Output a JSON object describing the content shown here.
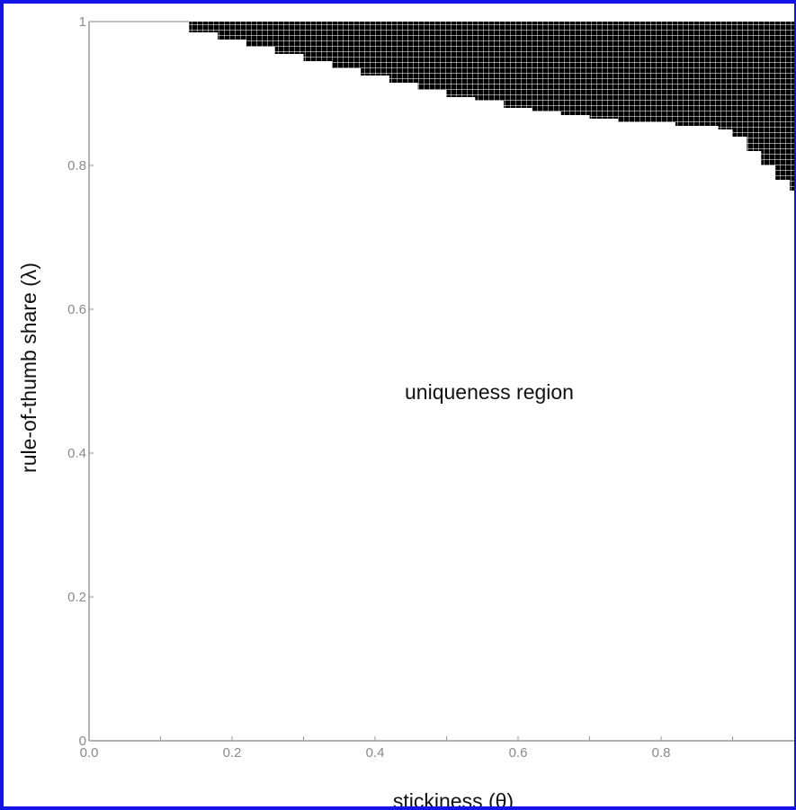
{
  "chart_data": {
    "type": "scatter",
    "title": "",
    "xlabel": "stickiness (θ)",
    "ylabel": "rule-of-thumb share (λ)",
    "xlim": [
      0,
      1
    ],
    "ylim": [
      0,
      1
    ],
    "x_ticks": [
      "0.0",
      "0.2",
      "0.4",
      "0.6",
      "0.8"
    ],
    "x_tick_values": [
      0,
      0.2,
      0.4,
      0.6,
      0.8
    ],
    "y_ticks": [
      "0",
      "0.2",
      "0.4",
      "0.6",
      "0.8",
      "1"
    ],
    "y_tick_values": [
      0,
      0.2,
      0.4,
      0.6,
      0.8,
      1
    ],
    "grid": false,
    "annotation": "uniqueness region",
    "series": [
      {
        "kind": "filled-region",
        "color": "#000000",
        "boundary": [
          {
            "x": 0.14,
            "y": 0.985
          },
          {
            "x": 0.18,
            "y": 0.975
          },
          {
            "x": 0.22,
            "y": 0.965
          },
          {
            "x": 0.26,
            "y": 0.955
          },
          {
            "x": 0.3,
            "y": 0.945
          },
          {
            "x": 0.34,
            "y": 0.935
          },
          {
            "x": 0.38,
            "y": 0.925
          },
          {
            "x": 0.42,
            "y": 0.915
          },
          {
            "x": 0.46,
            "y": 0.905
          },
          {
            "x": 0.5,
            "y": 0.895
          },
          {
            "x": 0.54,
            "y": 0.89
          },
          {
            "x": 0.58,
            "y": 0.88
          },
          {
            "x": 0.62,
            "y": 0.875
          },
          {
            "x": 0.66,
            "y": 0.87
          },
          {
            "x": 0.7,
            "y": 0.865
          },
          {
            "x": 0.74,
            "y": 0.86
          },
          {
            "x": 0.78,
            "y": 0.86
          },
          {
            "x": 0.82,
            "y": 0.855
          },
          {
            "x": 0.86,
            "y": 0.855
          },
          {
            "x": 0.88,
            "y": 0.85
          },
          {
            "x": 0.9,
            "y": 0.84
          },
          {
            "x": 0.92,
            "y": 0.82
          },
          {
            "x": 0.94,
            "y": 0.8
          },
          {
            "x": 0.96,
            "y": 0.78
          },
          {
            "x": 0.98,
            "y": 0.765
          },
          {
            "x": 1.0,
            "y": 0.76
          }
        ]
      }
    ]
  }
}
